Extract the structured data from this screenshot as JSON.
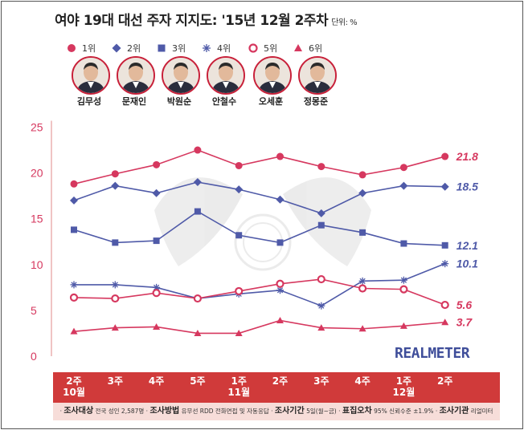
{
  "title": "여야 19대 대선 주자 지지도: '15년 12월 2주차",
  "unit": "단위: %",
  "brand": "REALMETER",
  "legend": [
    {
      "rank": "1위",
      "name": "김무성",
      "color": "#d6385f",
      "marker": "circle"
    },
    {
      "rank": "2위",
      "name": "문재인",
      "color": "#4f5aa8",
      "marker": "diamond"
    },
    {
      "rank": "3위",
      "name": "박원순",
      "color": "#4f5aa8",
      "marker": "square"
    },
    {
      "rank": "4위",
      "name": "안철수",
      "color": "#4f5aa8",
      "marker": "asterisk"
    },
    {
      "rank": "5위",
      "name": "오세훈",
      "color": "#d6385f",
      "marker": "ring"
    },
    {
      "rank": "6위",
      "name": "정몽준",
      "color": "#d6385f",
      "marker": "triangle"
    }
  ],
  "footer": [
    {
      "key": "조사대상",
      "text": "전국 성인 2,587명"
    },
    {
      "key": "조사방법",
      "text": "유무선 RDD 전화면접 및 자동응답"
    },
    {
      "key": "조사기간",
      "text": "5일(월~금)"
    },
    {
      "key": "표집오차",
      "text": "95% 신뢰수준 ±1.9%"
    },
    {
      "key": "조사기관",
      "text": "리얼미터"
    }
  ],
  "chart_data": {
    "type": "line",
    "categories": [
      "2주\n10월",
      "3주",
      "4주",
      "5주",
      "1주\n11월",
      "2주",
      "3주",
      "4주",
      "1주\n12월",
      "2주"
    ],
    "ylim": [
      0,
      25
    ],
    "yticks": [
      0,
      5,
      10,
      15,
      20,
      25
    ],
    "grid": false,
    "series": [
      {
        "name": "김무성",
        "color": "#d6385f",
        "marker": "circle",
        "values": [
          18.8,
          19.9,
          20.9,
          22.5,
          20.8,
          21.8,
          20.7,
          19.8,
          20.6,
          21.8
        ],
        "end_label": "21.8"
      },
      {
        "name": "문재인",
        "color": "#4f5aa8",
        "marker": "diamond",
        "values": [
          17.0,
          18.6,
          17.8,
          19.0,
          18.2,
          17.1,
          15.6,
          17.8,
          18.6,
          18.5
        ],
        "end_label": "18.5"
      },
      {
        "name": "박원순",
        "color": "#4f5aa8",
        "marker": "square",
        "values": [
          13.8,
          12.4,
          12.6,
          15.8,
          13.2,
          12.4,
          14.3,
          13.5,
          12.3,
          12.1
        ],
        "end_label": "12.1"
      },
      {
        "name": "안철수",
        "color": "#4f5aa8",
        "marker": "asterisk",
        "values": [
          7.8,
          7.8,
          7.5,
          6.3,
          6.8,
          7.2,
          5.5,
          8.2,
          8.3,
          10.1
        ],
        "end_label": "10.1"
      },
      {
        "name": "오세훈",
        "color": "#d6385f",
        "marker": "ring",
        "values": [
          6.4,
          6.3,
          6.9,
          6.3,
          7.1,
          7.9,
          8.4,
          7.4,
          7.3,
          5.6
        ],
        "end_label": "5.6"
      },
      {
        "name": "정몽준",
        "color": "#d6385f",
        "marker": "triangle",
        "values": [
          2.7,
          3.1,
          3.2,
          2.5,
          2.5,
          3.9,
          3.1,
          3.0,
          3.3,
          3.7
        ],
        "end_label": "3.7"
      }
    ]
  }
}
